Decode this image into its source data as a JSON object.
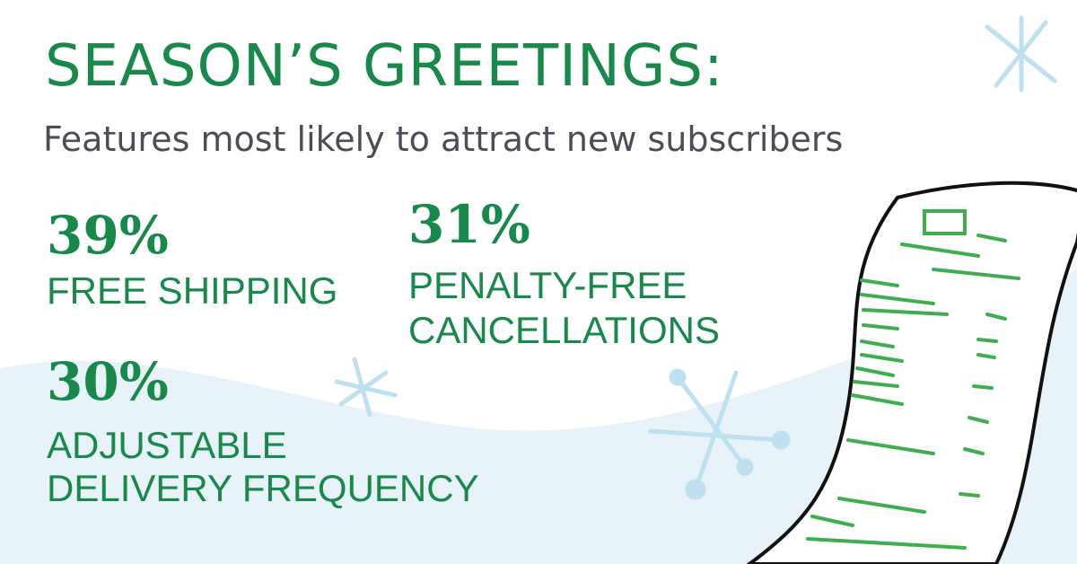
{
  "header": {
    "title": "SEASON’S GREETINGS:",
    "subtitle": "Features most likely to attract new subscribers"
  },
  "stats": [
    {
      "value": "39%",
      "lines": [
        "FREE SHIPPING"
      ]
    },
    {
      "value": "31%",
      "lines": [
        "PENALTY-FREE",
        "CANCELLATIONS"
      ]
    },
    {
      "value": "30%",
      "lines": [
        "ADJUSTABLE",
        "DELIVERY FREQUENCY"
      ]
    }
  ]
}
